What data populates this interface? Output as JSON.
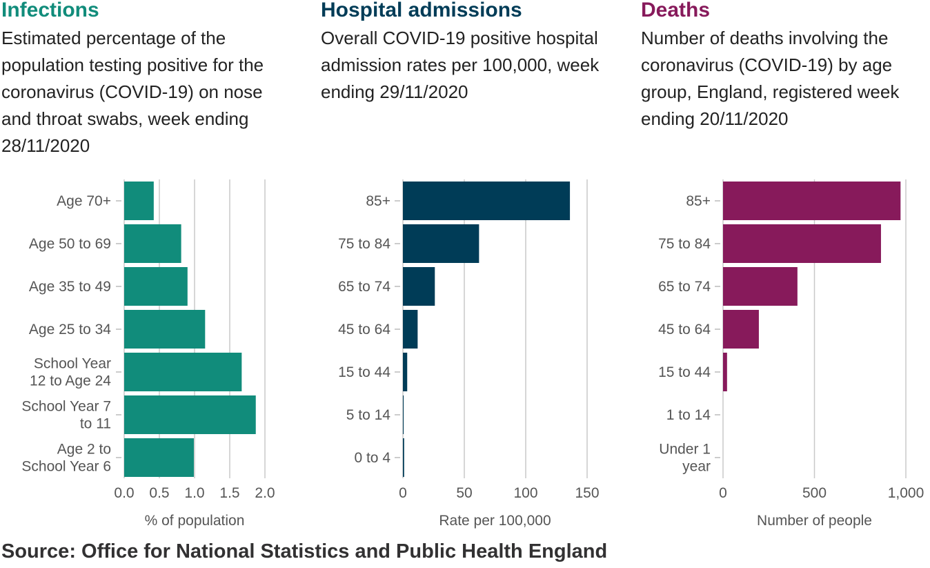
{
  "source": "Source: Office for National Statistics and Public Health England",
  "chart_data": [
    {
      "type": "bar",
      "orientation": "horizontal",
      "title": "Infections",
      "subtitle": "Estimated percentage of the population testing positive for the coronavirus (COVID-19) on nose and throat swabs, week ending 28/11/2020",
      "title_color": "#118c7b",
      "bar_color": "#118c7b",
      "categories": [
        "Age 70+",
        "Age 50 to 69",
        "Age 35 to 49",
        "Age 25 to 34",
        "School Year 12 to Age 24",
        "School Year 7 to 11",
        "Age 2 to School Year 6"
      ],
      "category_lines": [
        [
          "Age 70+"
        ],
        [
          "Age 50 to 69"
        ],
        [
          "Age 35 to 49"
        ],
        [
          "Age 25 to 34"
        ],
        [
          "School Year",
          "12 to Age 24"
        ],
        [
          "School Year 7",
          "to 11"
        ],
        [
          "Age 2 to",
          "School Year 6"
        ]
      ],
      "values": [
        0.42,
        0.81,
        0.9,
        1.15,
        1.67,
        1.87,
        0.99
      ],
      "xlim": [
        0,
        2.0
      ],
      "xticks": [
        0,
        0.5,
        1.0,
        1.5,
        2.0
      ],
      "xtick_labels": [
        "0.0",
        "0.5",
        "1.0",
        "1.5",
        "2.0"
      ],
      "xlabel": "% of population",
      "grid": true
    },
    {
      "type": "bar",
      "orientation": "horizontal",
      "title": "Hospital admissions",
      "subtitle": "Overall COVID-19 positive hospital admission rates per 100,000, week ending 29/11/2020",
      "title_color": "#003c57",
      "bar_color": "#003c57",
      "categories": [
        "85+",
        "75 to 84",
        "65 to 74",
        "45 to 64",
        "15 to 44",
        "5 to 14",
        "0 to 4"
      ],
      "category_lines": [
        [
          "85+"
        ],
        [
          "75 to 84"
        ],
        [
          "65 to 74"
        ],
        [
          "45 to 64"
        ],
        [
          "15 to 44"
        ],
        [
          "5 to 14"
        ],
        [
          "0 to 4"
        ]
      ],
      "values": [
        136,
        62,
        26,
        12,
        3.5,
        0.6,
        1.0
      ],
      "xlim": [
        0,
        150
      ],
      "xticks": [
        0,
        50,
        100,
        150
      ],
      "xtick_labels": [
        "0",
        "50",
        "100",
        "150"
      ],
      "xlabel": "Rate per 100,000",
      "grid": true
    },
    {
      "type": "bar",
      "orientation": "horizontal",
      "title": "Deaths",
      "subtitle": "Number of deaths involving the coronavirus (COVID-19) by age group, England, registered week ending 20/11/2020",
      "title_color": "#871a5b",
      "bar_color": "#871a5b",
      "categories": [
        "85+",
        "75 to 84",
        "65 to 74",
        "45 to 64",
        "15 to 44",
        "1 to 14",
        "Under 1 year"
      ],
      "category_lines": [
        [
          "85+"
        ],
        [
          "75 to 84"
        ],
        [
          "65 to 74"
        ],
        [
          "45 to 64"
        ],
        [
          "15 to 44"
        ],
        [
          "1 to 14"
        ],
        [
          "Under 1",
          "year"
        ]
      ],
      "values": [
        971,
        864,
        407,
        196,
        22,
        0,
        0
      ],
      "xlim": [
        0,
        1000
      ],
      "xticks": [
        0,
        500,
        1000
      ],
      "xtick_labels": [
        "0",
        "500",
        "1,000"
      ],
      "xlabel": "Number of people",
      "grid": true
    }
  ]
}
